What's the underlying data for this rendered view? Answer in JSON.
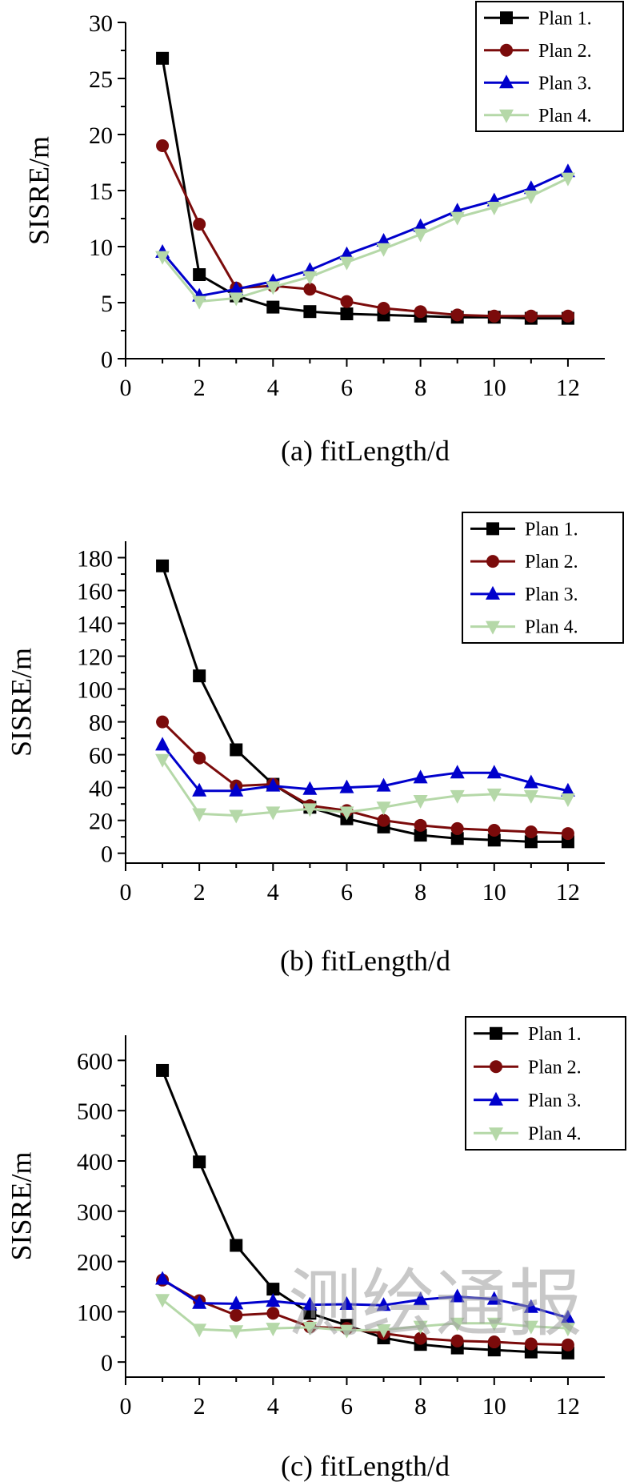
{
  "watermark": "测绘通报",
  "colors": {
    "plan1": "#000000",
    "plan2": "#7b0b0b",
    "plan3": "#0000cc",
    "plan4": "#b5d8a8",
    "axis": "#000000"
  },
  "chart_data": [
    {
      "type": "line",
      "panel": "(a)",
      "xlabel": "(a) fitLength/d",
      "ylabel": "SISRE/m",
      "xlim": [
        0,
        13
      ],
      "ylim": [
        0,
        30
      ],
      "xticks": [
        0,
        2,
        4,
        6,
        8,
        10,
        12
      ],
      "yticks": [
        0,
        5,
        10,
        15,
        20,
        25,
        30
      ],
      "x": [
        1,
        2,
        3,
        4,
        5,
        6,
        7,
        8,
        9,
        10,
        11,
        12
      ],
      "legend_position": "top-right",
      "series": [
        {
          "name": "Plan 1.",
          "marker": "square",
          "values": [
            26.8,
            7.5,
            5.6,
            4.6,
            4.2,
            4.0,
            3.9,
            3.8,
            3.7,
            3.7,
            3.6,
            3.6
          ]
        },
        {
          "name": "Plan 2.",
          "marker": "circle",
          "values": [
            19.0,
            12.0,
            6.3,
            6.5,
            6.2,
            5.1,
            4.5,
            4.2,
            3.9,
            3.8,
            3.8,
            3.8
          ]
        },
        {
          "name": "Plan 3.",
          "marker": "triangle-up",
          "values": [
            9.5,
            5.6,
            6.2,
            6.9,
            7.9,
            9.3,
            10.5,
            11.8,
            13.2,
            14.1,
            15.2,
            16.7
          ]
        },
        {
          "name": "Plan 4.",
          "marker": "triangle-down",
          "values": [
            9.1,
            5.1,
            5.4,
            6.4,
            7.3,
            8.6,
            9.8,
            11.1,
            12.6,
            13.5,
            14.5,
            16.1
          ]
        }
      ]
    },
    {
      "type": "line",
      "panel": "(b)",
      "xlabel": "(b) fitLength/d",
      "ylabel": "SISRE/m",
      "xlim": [
        0,
        13
      ],
      "ylim": [
        -6,
        190
      ],
      "xticks": [
        0,
        2,
        4,
        6,
        8,
        10,
        12
      ],
      "yticks": [
        0,
        20,
        40,
        60,
        80,
        100,
        120,
        140,
        160,
        180
      ],
      "x": [
        1,
        2,
        3,
        4,
        5,
        6,
        7,
        8,
        9,
        10,
        11,
        12
      ],
      "legend_position": "top-right",
      "series": [
        {
          "name": "Plan 1.",
          "marker": "square",
          "values": [
            175,
            108,
            63,
            42,
            28,
            21,
            16,
            11,
            9,
            8,
            7,
            7
          ]
        },
        {
          "name": "Plan 2.",
          "marker": "circle",
          "values": [
            80,
            58,
            41,
            42,
            29,
            26,
            20,
            17,
            15,
            14,
            13,
            12
          ]
        },
        {
          "name": "Plan 3.",
          "marker": "triangle-up",
          "values": [
            66,
            38,
            38,
            41,
            39,
            40,
            41,
            46,
            49,
            49,
            43,
            38
          ]
        },
        {
          "name": "Plan 4.",
          "marker": "triangle-down",
          "values": [
            57,
            24,
            23,
            25,
            27,
            25,
            28,
            32,
            35,
            36,
            35,
            33
          ]
        }
      ]
    },
    {
      "type": "line",
      "panel": "(c)",
      "xlabel": "(c) fitLength/d",
      "ylabel": "SISRE/m",
      "xlim": [
        0,
        13
      ],
      "ylim": [
        -30,
        650
      ],
      "xticks": [
        0,
        2,
        4,
        6,
        8,
        10,
        12
      ],
      "yticks": [
        0,
        100,
        200,
        300,
        400,
        500,
        600
      ],
      "x": [
        1,
        2,
        3,
        4,
        5,
        6,
        7,
        8,
        9,
        10,
        11,
        12
      ],
      "legend_position": "top-right",
      "series": [
        {
          "name": "Plan 1.",
          "marker": "square",
          "values": [
            580,
            398,
            232,
            145,
            97,
            73,
            48,
            35,
            28,
            24,
            20,
            18
          ]
        },
        {
          "name": "Plan 2.",
          "marker": "circle",
          "values": [
            163,
            122,
            93,
            97,
            70,
            67,
            57,
            47,
            42,
            40,
            36,
            34
          ]
        },
        {
          "name": "Plan 3.",
          "marker": "triangle-up",
          "values": [
            165,
            117,
            116,
            121,
            114,
            115,
            113,
            124,
            130,
            125,
            109,
            88
          ]
        },
        {
          "name": "Plan 4.",
          "marker": "triangle-down",
          "values": [
            124,
            65,
            62,
            67,
            69,
            63,
            64,
            71,
            77,
            77,
            71,
            67
          ]
        }
      ]
    }
  ]
}
